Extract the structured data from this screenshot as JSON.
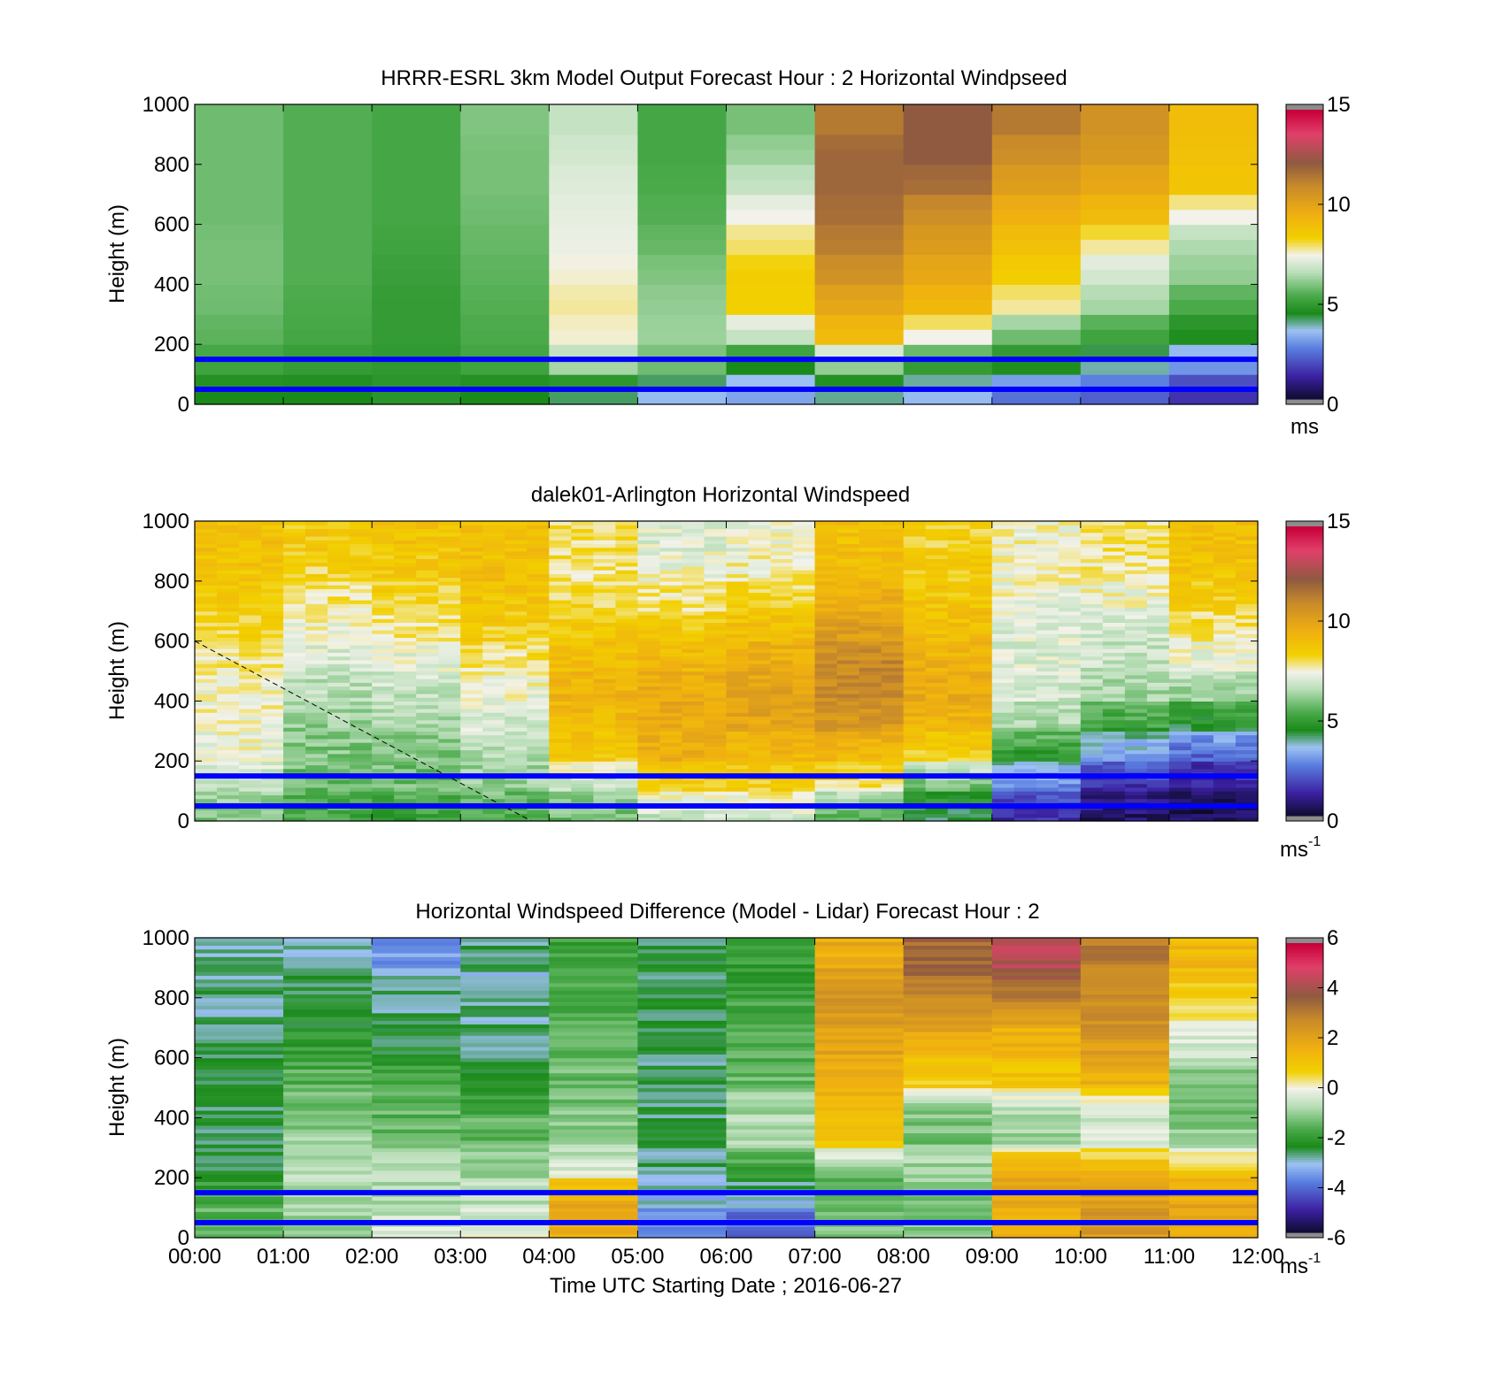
{
  "panels": [
    {
      "title": "HRRR-ESRL 3km Model Output   Forecast Hour : 2 Horizontal Windpseed",
      "ylabel": "Height (m)",
      "unit_main": "ms",
      "unit_sup": "",
      "colorbar": {
        "min": 0,
        "max": 15,
        "ticks": [
          "15",
          "10",
          "5",
          "0"
        ]
      },
      "yticks": [
        "1000",
        "800",
        "600",
        "400",
        "200",
        "0"
      ]
    },
    {
      "title": "dalek01-Arlington  Horizontal Windspeed",
      "ylabel": "Height (m)",
      "unit_main": "ms",
      "unit_sup": "-1",
      "colorbar": {
        "min": 0,
        "max": 15,
        "ticks": [
          "15",
          "10",
          "5",
          "0"
        ]
      },
      "yticks": [
        "1000",
        "800",
        "600",
        "400",
        "200",
        "0"
      ]
    },
    {
      "title": "Horizontal Windspeed Difference (Model - Lidar) Forecast Hour : 2",
      "ylabel": "Height (m)",
      "unit_main": "ms",
      "unit_sup": "-1",
      "colorbar": {
        "min": -6,
        "max": 6,
        "ticks": [
          "6",
          "4",
          "2",
          "0",
          "-2",
          "-4",
          "-6"
        ]
      },
      "yticks": [
        "1000",
        "800",
        "600",
        "400",
        "200",
        "0"
      ]
    }
  ],
  "xaxis": {
    "label": "Time UTC  Starting Date ; 2016-06-27",
    "ticks": [
      "00:00",
      "01:00",
      "02:00",
      "03:00",
      "04:00",
      "05:00",
      "06:00",
      "07:00",
      "08:00",
      "09:00",
      "10:00",
      "11:00",
      "12:00"
    ]
  },
  "colors": {
    "reference_lines": "#0000ff",
    "colormap_stops": [
      "#0b0b2a",
      "#3b1fa0",
      "#5a7fe0",
      "#9ec2f2",
      "#1a8a1a",
      "#4aaa4a",
      "#b8deb8",
      "#f2f2ea",
      "#f2d000",
      "#f0b010",
      "#c88a2a",
      "#8f5a40",
      "#e0406a",
      "#c8003a"
    ]
  },
  "chart_data": [
    {
      "type": "heatmap",
      "title": "HRRR-ESRL 3km Model Output   Forecast Hour : 2 Horizontal Windpseed",
      "xlabel": "",
      "ylabel": "Height (m)",
      "xlim": [
        0,
        12
      ],
      "ylim": [
        0,
        1000
      ],
      "units": "ms",
      "clim": [
        0,
        15
      ],
      "hour_starts": [
        0,
        1,
        2,
        3,
        4,
        5,
        6,
        7,
        8,
        9,
        10,
        11
      ],
      "heights": [
        50,
        150,
        250,
        350,
        450,
        550,
        650,
        750,
        850,
        950
      ],
      "values_by_hour": [
        [
          4.5,
          5.2,
          5.6,
          5.8,
          5.9,
          5.9,
          5.8,
          5.8,
          5.8,
          5.8
        ],
        [
          4.5,
          5.0,
          5.3,
          5.4,
          5.5,
          5.5,
          5.5,
          5.5,
          5.5,
          5.5
        ],
        [
          4.8,
          4.9,
          5.0,
          5.0,
          5.1,
          5.2,
          5.3,
          5.3,
          5.3,
          5.3
        ],
        [
          4.5,
          5.2,
          5.4,
          5.5,
          5.6,
          5.7,
          5.8,
          5.9,
          5.9,
          6.0
        ],
        [
          4.2,
          6.4,
          7.6,
          7.8,
          7.6,
          7.4,
          7.3,
          7.2,
          7.0,
          6.8
        ],
        [
          3.5,
          5.8,
          6.3,
          6.2,
          6.0,
          5.7,
          5.5,
          5.4,
          5.3,
          5.3
        ],
        [
          3.2,
          4.5,
          6.8,
          8.4,
          8.5,
          8.0,
          7.5,
          6.8,
          6.3,
          5.9
        ],
        [
          4.0,
          6.2,
          9.2,
          10.0,
          10.8,
          11.4,
          11.8,
          12.0,
          12.0,
          11.5
        ],
        [
          3.5,
          5.0,
          7.5,
          9.3,
          9.9,
          10.4,
          10.9,
          11.8,
          12.3,
          12.3
        ],
        [
          2.5,
          4.6,
          5.8,
          7.8,
          8.5,
          9.0,
          9.6,
          10.3,
          10.9,
          11.5
        ],
        [
          2.2,
          3.9,
          5.2,
          6.4,
          7.0,
          7.8,
          9.2,
          9.9,
          10.5,
          10.8
        ],
        [
          1.5,
          3.0,
          4.6,
          5.4,
          6.2,
          6.5,
          7.5,
          8.8,
          9.0,
          9.1
        ]
      ],
      "reference_lines_m": [
        50,
        150
      ]
    },
    {
      "type": "heatmap",
      "title": "dalek01-Arlington  Horizontal Windspeed",
      "xlabel": "",
      "ylabel": "Height (m)",
      "xlim": [
        0,
        12
      ],
      "ylim": [
        0,
        1000
      ],
      "units": "ms-1",
      "clim": [
        0,
        15
      ],
      "hour_starts": [
        0,
        1,
        2,
        3,
        4,
        5,
        6,
        7,
        8,
        9,
        10,
        11
      ],
      "heights": [
        50,
        150,
        250,
        350,
        450,
        550,
        650,
        750,
        850,
        950
      ],
      "values_by_hour": [
        [
          6.0,
          6.8,
          7.4,
          7.6,
          7.6,
          7.8,
          8.2,
          8.6,
          8.8,
          9.0
        ],
        [
          5.2,
          5.8,
          6.0,
          6.2,
          6.6,
          7.0,
          7.4,
          7.8,
          8.2,
          8.6
        ],
        [
          5.0,
          5.8,
          6.0,
          6.4,
          6.8,
          7.2,
          7.8,
          8.2,
          8.6,
          8.8
        ],
        [
          5.4,
          6.2,
          6.6,
          7.0,
          7.4,
          7.8,
          8.4,
          8.8,
          9.0,
          9.0
        ],
        [
          5.8,
          6.6,
          8.6,
          9.2,
          9.4,
          9.2,
          8.8,
          8.2,
          8.0,
          8.0
        ],
        [
          6.8,
          8.2,
          9.6,
          9.8,
          9.8,
          9.4,
          8.8,
          8.0,
          7.6,
          7.2
        ],
        [
          7.0,
          8.4,
          9.2,
          10.0,
          10.2,
          9.8,
          9.2,
          8.4,
          7.8,
          7.4
        ],
        [
          5.4,
          7.8,
          9.2,
          10.4,
          11.0,
          11.2,
          10.4,
          9.8,
          9.2,
          9.0
        ],
        [
          4.2,
          5.6,
          8.4,
          9.4,
          9.8,
          9.6,
          9.2,
          8.8,
          8.6,
          8.4
        ],
        [
          1.4,
          2.6,
          4.8,
          6.4,
          7.0,
          7.2,
          7.2,
          7.4,
          7.6,
          7.6
        ],
        [
          0.6,
          1.4,
          3.0,
          5.0,
          6.4,
          6.8,
          7.0,
          7.4,
          7.8,
          8.0
        ],
        [
          0.4,
          1.0,
          2.2,
          4.4,
          6.2,
          7.2,
          7.8,
          8.4,
          8.8,
          9.0
        ]
      ],
      "reference_lines_m": [
        50,
        150
      ],
      "dashed_line": {
        "from": [
          0,
          600
        ],
        "to": [
          3.8,
          0
        ]
      }
    },
    {
      "type": "heatmap",
      "title": "Horizontal Windspeed Difference (Model - Lidar) Forecast Hour : 2",
      "xlabel": "Time UTC  Starting Date ; 2016-06-27",
      "ylabel": "Height (m)",
      "xlim": [
        0,
        12
      ],
      "ylim": [
        0,
        1000
      ],
      "units": "ms-1",
      "clim": [
        -6,
        6
      ],
      "hour_starts": [
        0,
        1,
        2,
        3,
        4,
        5,
        6,
        7,
        8,
        9,
        10,
        11
      ],
      "heights": [
        50,
        150,
        250,
        350,
        450,
        550,
        650,
        750,
        850,
        950
      ],
      "values_by_hour": [
        [
          -1.5,
          -1.6,
          -2.4,
          -2.6,
          -2.5,
          -2.5,
          -2.6,
          -2.8,
          -2.8,
          -2.8
        ],
        [
          -0.8,
          -0.9,
          -0.7,
          -1.0,
          -1.2,
          -1.5,
          -2.0,
          -2.3,
          -2.5,
          -2.8
        ],
        [
          -0.4,
          -0.7,
          -0.8,
          -1.3,
          -1.5,
          -1.8,
          -2.3,
          -2.6,
          -2.8,
          -3.6
        ],
        [
          -0.2,
          -0.6,
          -1.0,
          -1.4,
          -1.6,
          -2.2,
          -2.6,
          -2.8,
          -3.0,
          -2.8
        ],
        [
          1.6,
          2.0,
          -0.3,
          -1.0,
          -1.2,
          -1.4,
          -1.5,
          -1.6,
          -1.8,
          -1.9
        ],
        [
          -4.0,
          -3.2,
          -2.8,
          -2.6,
          -2.6,
          -2.6,
          -2.6,
          -2.6,
          -2.6,
          -2.5
        ],
        [
          -4.4,
          -3.2,
          -2.0,
          -0.8,
          -0.8,
          -1.4,
          -1.6,
          -1.8,
          -1.9,
          -2.0
        ],
        [
          -1.2,
          -1.4,
          -1.4,
          1.2,
          1.4,
          1.6,
          2.0,
          2.4,
          2.4,
          1.8
        ],
        [
          -1.2,
          -1.2,
          -0.8,
          -1.2,
          -1.2,
          0.8,
          1.6,
          2.4,
          3.2,
          3.6
        ],
        [
          1.6,
          1.8,
          2.0,
          -0.8,
          -1.0,
          1.0,
          1.4,
          2.0,
          3.4,
          4.4
        ],
        [
          2.4,
          2.4,
          1.6,
          -0.4,
          -0.6,
          1.6,
          2.2,
          2.6,
          2.8,
          3.2
        ],
        [
          1.6,
          2.0,
          1.2,
          -1.0,
          -1.6,
          -1.2,
          -0.6,
          0.2,
          0.8,
          1.4
        ]
      ],
      "reference_lines_m": [
        50,
        150
      ]
    }
  ]
}
